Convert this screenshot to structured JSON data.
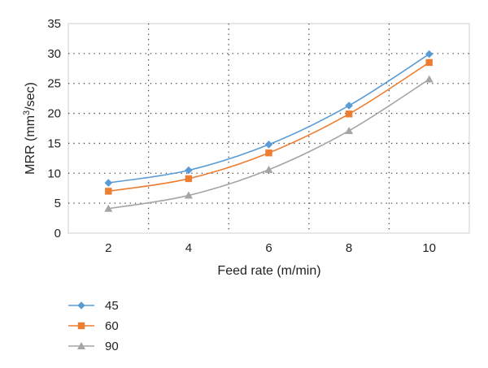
{
  "chart_data": {
    "type": "line",
    "title": "",
    "xlabel": "Feed rate (m/min)",
    "ylabel": {
      "prefix": "MRR (mm",
      "superscript": "3",
      "suffix": "/sec)"
    },
    "x": [
      2,
      4,
      6,
      8,
      10
    ],
    "xlim": [
      1,
      11
    ],
    "ylim": [
      0,
      35
    ],
    "xticks": [
      2,
      4,
      6,
      8,
      10
    ],
    "yticks": [
      0,
      5,
      10,
      15,
      20,
      25,
      30,
      35
    ],
    "grid": true,
    "legend_position": "bottom-left",
    "series": [
      {
        "name": "45",
        "values": [
          8.4,
          10.5,
          14.8,
          21.3,
          29.9
        ],
        "color": "#5b9bd5",
        "marker": "diamond"
      },
      {
        "name": "60",
        "values": [
          7.0,
          9.1,
          13.4,
          19.9,
          28.5
        ],
        "color": "#ed7d31",
        "marker": "square"
      },
      {
        "name": "90",
        "values": [
          4.1,
          6.3,
          10.6,
          17.1,
          25.7
        ],
        "color": "#a5a5a5",
        "marker": "triangle"
      }
    ]
  }
}
